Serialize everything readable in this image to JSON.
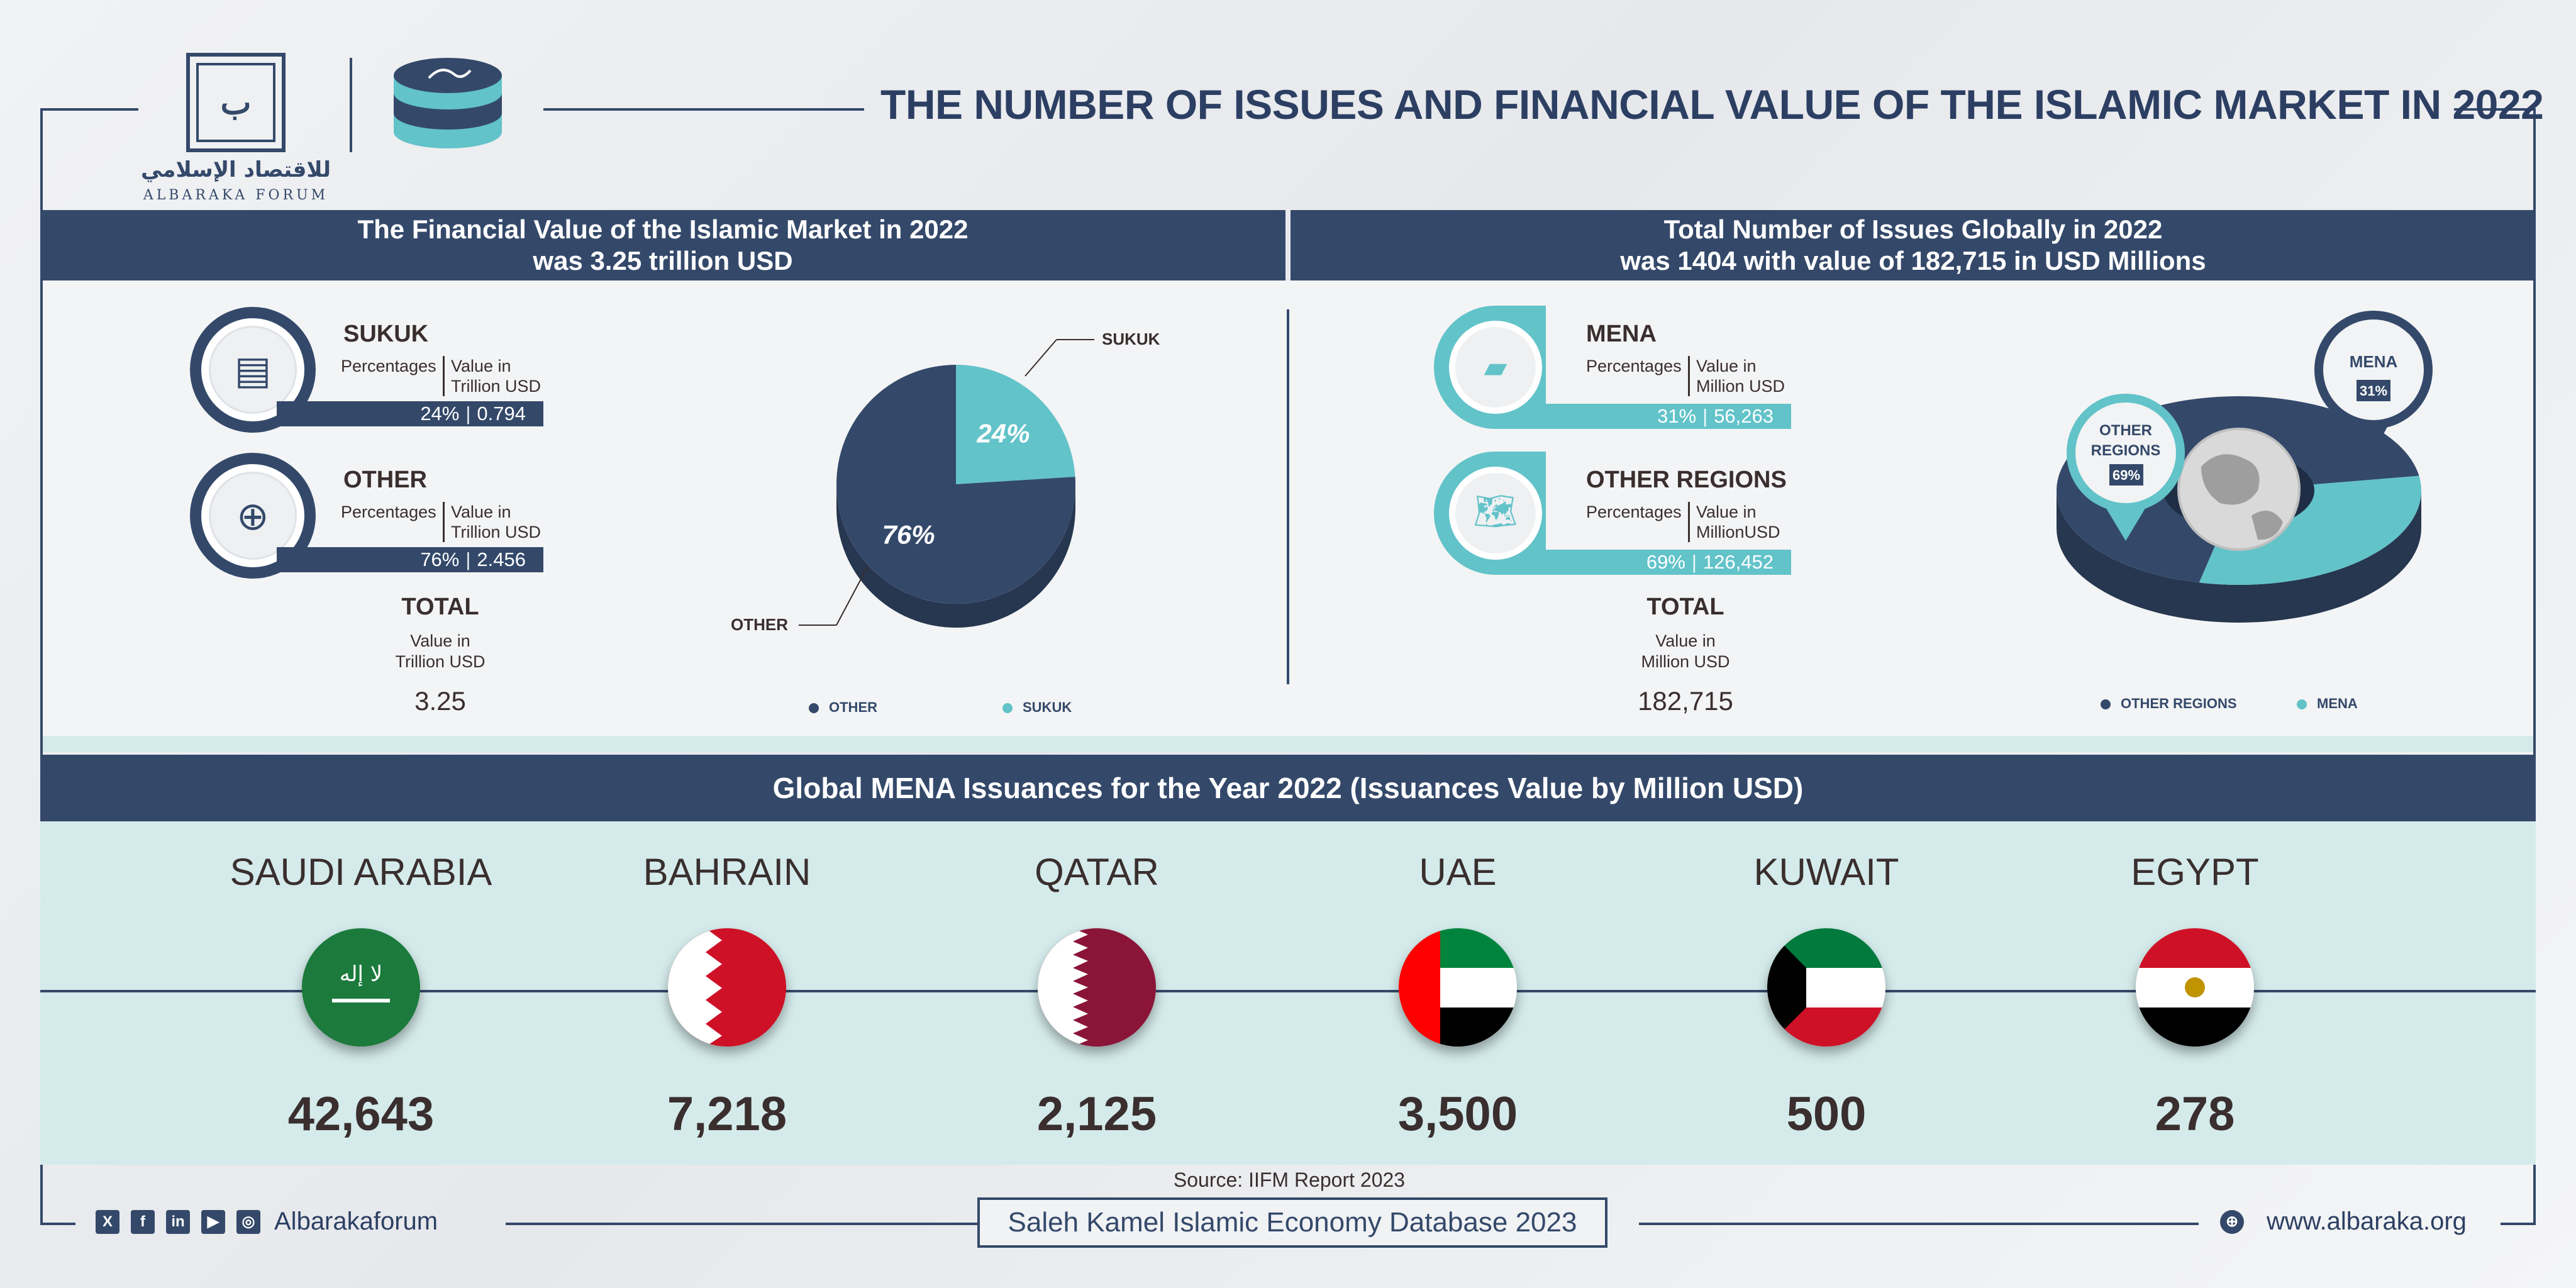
{
  "header": {
    "logo_ar": "للاقتصاد الإسلامي",
    "logo_en": "ALBARAKA FORUM",
    "title": "THE NUMBER OF ISSUES AND FINANCIAL VALUE OF THE ISLAMIC MARKET IN 2022"
  },
  "left_panel": {
    "heading_line1": "The Financial Value of the Islamic Market in 2022",
    "heading_line2": "was 3.25 trillion USD",
    "items": [
      {
        "title": "SUKUK",
        "label_pct": "Percentages",
        "label_val_1": "Value in",
        "label_val_2": "Trillion USD",
        "pct": "24%",
        "value": "0.794",
        "icon": "sukuk-certificate-icon"
      },
      {
        "title": "OTHER",
        "label_pct": "Percentages",
        "label_val_1": "Value in",
        "label_val_2": "Trillion USD",
        "pct": "76%",
        "value": "2.456",
        "icon": "globe-finance-icon"
      }
    ],
    "total": {
      "title": "TOTAL",
      "label_1": "Value in",
      "label_2": "Trillion USD",
      "value": "3.25"
    }
  },
  "right_panel": {
    "heading_line1": "Total Number of Issues Globally in 2022",
    "heading_line2": "was 1404 with value of 182,715 in USD Millions",
    "items": [
      {
        "title": "MENA",
        "label_pct": "Percentages",
        "label_val_1": "Value in",
        "label_val_2": "Million USD",
        "pct": "31%",
        "value": "56,263",
        "icon": "mena-map-icon"
      },
      {
        "title": "OTHER REGIONS",
        "label_pct": "Percentages",
        "label_val_1": "Value in",
        "label_val_2": "MillionUSD",
        "pct": "69%",
        "value": "126,452",
        "icon": "world-map-icon"
      }
    ],
    "total": {
      "title": "TOTAL",
      "label_1": "Value in",
      "label_2": "Million USD",
      "value": "182,715"
    },
    "pin_mena": {
      "l1": "MENA",
      "pct": "31%"
    },
    "pin_other": {
      "l1": "OTHER",
      "l2": "REGIONS",
      "pct": "69%"
    }
  },
  "chart_data": [
    {
      "type": "pie",
      "categories": [
        "SUKUK",
        "OTHER"
      ],
      "values": [
        24,
        76
      ],
      "data_labels": [
        "24%",
        "76%"
      ],
      "legend": [
        "OTHER",
        "SUKUK"
      ],
      "colors": {
        "OTHER": "#34496a",
        "SUKUK": "#62c3c9"
      }
    },
    {
      "type": "pie",
      "categories": [
        "MENA",
        "OTHER REGIONS"
      ],
      "values": [
        31,
        69
      ],
      "data_labels": [
        "31%",
        "69%"
      ],
      "legend": [
        "OTHER REGIONS",
        "MENA"
      ],
      "colors": {
        "OTHER REGIONS": "#34496a",
        "MENA": "#62c3c9"
      }
    },
    {
      "type": "table",
      "title": "Global MENA Issuances for the Year 2022 (Issuances Value by Million USD)",
      "categories": [
        "SAUDI ARABIA",
        "BAHRAIN",
        "QATAR",
        "UAE",
        "KUWAIT",
        "EGYPT"
      ],
      "values": [
        42643,
        7218,
        2125,
        3500,
        500,
        278
      ]
    }
  ],
  "mena": {
    "heading": "Global MENA Issuances for the Year 2022 (Issuances Value by Million USD)",
    "countries": [
      {
        "name": "SAUDI ARABIA",
        "value": "42,643",
        "flag": "saudi-arabia"
      },
      {
        "name": "BAHRAIN",
        "value": "7,218",
        "flag": "bahrain"
      },
      {
        "name": "QATAR",
        "value": "2,125",
        "flag": "qatar"
      },
      {
        "name": "UAE",
        "value": "3,500",
        "flag": "uae"
      },
      {
        "name": "KUWAIT",
        "value": "500",
        "flag": "kuwait"
      },
      {
        "name": "EGYPT",
        "value": "278",
        "flag": "egypt"
      }
    ]
  },
  "footer": {
    "source": "Source: IIFM Report 2023",
    "database": "Saleh Kamel Islamic Economy Database 2023",
    "social_handle": "Albarakaforum",
    "website": "www.albaraka.org",
    "social_icons": [
      "x-icon",
      "facebook-icon",
      "linkedin-icon",
      "youtube-icon",
      "instagram-icon"
    ]
  }
}
